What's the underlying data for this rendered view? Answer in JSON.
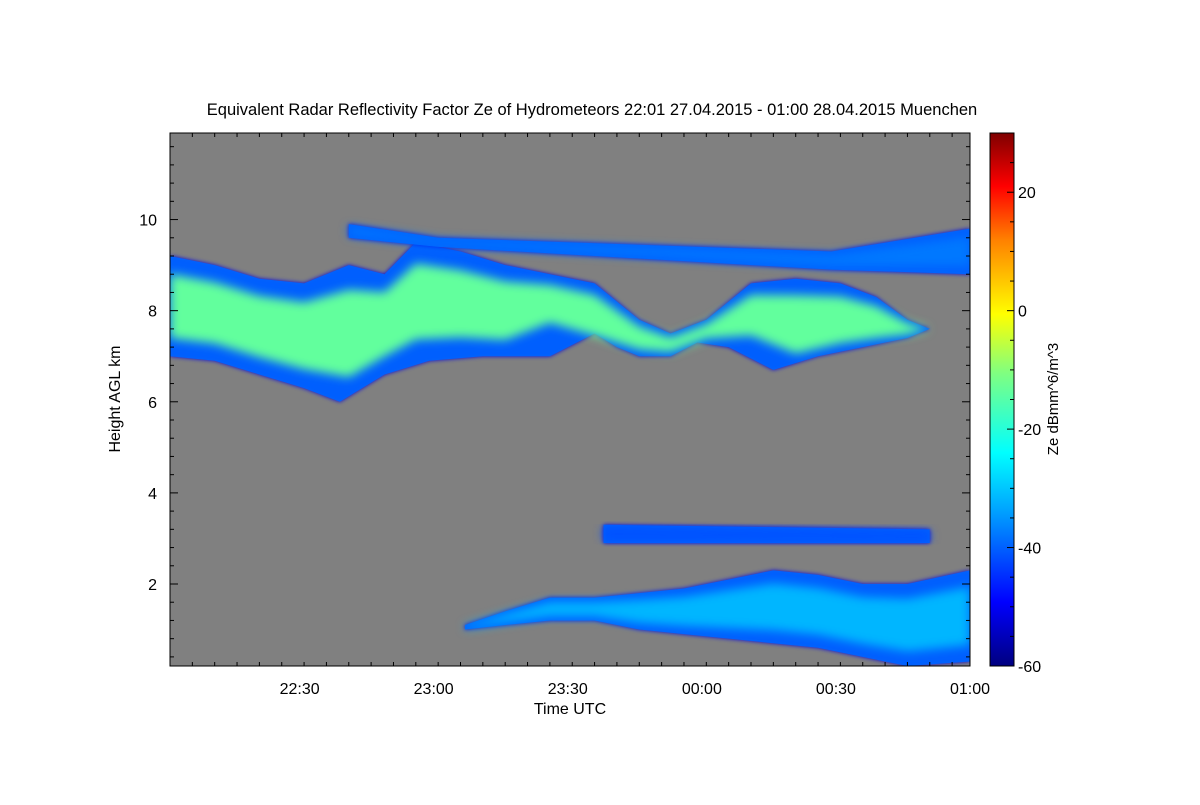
{
  "chart_data": {
    "type": "heatmap",
    "title": "Equivalent Radar Reflectivity Factor Ze of Hydrometeors   22:01 27.04.2015 - 01:00 28.04.2015 Muenchen",
    "xlabel": "Time UTC",
    "ylabel": "Height AGL km",
    "x_ticks": [
      "22:30",
      "23:00",
      "23:30",
      "00:00",
      "00:30",
      "01:00"
    ],
    "x_tick_minutes": [
      29,
      59,
      89,
      119,
      149,
      179
    ],
    "xlim_minutes": [
      0,
      179
    ],
    "y_ticks": [
      2,
      4,
      6,
      8,
      10
    ],
    "ylim": [
      0.2,
      11.9
    ],
    "background_color": "#808080",
    "colorbar": {
      "label": "Ze dBmm^6/m^3",
      "range": [
        -60,
        30
      ],
      "ticks": [
        -60,
        -40,
        -20,
        0,
        20
      ]
    },
    "layers": [
      {
        "name": "upper cloud layer",
        "top_km": [
          [
            0,
            9.2
          ],
          [
            10,
            9.0
          ],
          [
            20,
            8.7
          ],
          [
            30,
            8.6
          ],
          [
            40,
            9.0
          ],
          [
            48,
            8.8
          ],
          [
            55,
            9.5
          ],
          [
            65,
            9.3
          ],
          [
            75,
            9.0
          ],
          [
            85,
            8.8
          ],
          [
            95,
            8.6
          ],
          [
            105,
            7.8
          ],
          [
            112,
            7.5
          ],
          [
            120,
            7.8
          ],
          [
            130,
            8.6
          ],
          [
            140,
            8.7
          ],
          [
            150,
            8.6
          ],
          [
            158,
            8.3
          ],
          [
            165,
            7.8
          ],
          [
            170,
            7.6
          ]
        ],
        "base_km": [
          [
            0,
            7.0
          ],
          [
            10,
            6.9
          ],
          [
            20,
            6.6
          ],
          [
            30,
            6.3
          ],
          [
            38,
            6.0
          ],
          [
            48,
            6.6
          ],
          [
            58,
            6.9
          ],
          [
            70,
            7.0
          ],
          [
            85,
            7.0
          ],
          [
            95,
            7.5
          ],
          [
            100,
            7.2
          ],
          [
            105,
            7.0
          ],
          [
            112,
            7.0
          ],
          [
            118,
            7.3
          ],
          [
            125,
            7.2
          ],
          [
            135,
            6.7
          ],
          [
            145,
            7.0
          ],
          [
            155,
            7.2
          ],
          [
            165,
            7.4
          ],
          [
            170,
            7.6
          ]
        ],
        "core_dbz": -15
      },
      {
        "name": "thin cirrus patches",
        "top_km": [
          [
            40,
            9.9
          ],
          [
            60,
            9.6
          ],
          [
            148,
            9.3
          ],
          [
            179,
            9.8
          ]
        ],
        "base_km": [
          [
            40,
            9.6
          ],
          [
            60,
            9.4
          ],
          [
            148,
            8.9
          ],
          [
            179,
            8.8
          ]
        ],
        "core_dbz": -38
      },
      {
        "name": "lower cloud layer",
        "top_km": [
          [
            66,
            1.1
          ],
          [
            75,
            1.4
          ],
          [
            85,
            1.7
          ],
          [
            95,
            1.7
          ],
          [
            105,
            1.8
          ],
          [
            115,
            1.9
          ],
          [
            125,
            2.1
          ],
          [
            135,
            2.3
          ],
          [
            145,
            2.2
          ],
          [
            155,
            2.0
          ],
          [
            165,
            2.0
          ],
          [
            179,
            2.3
          ]
        ],
        "base_km": [
          [
            66,
            1.0
          ],
          [
            75,
            1.1
          ],
          [
            85,
            1.2
          ],
          [
            95,
            1.2
          ],
          [
            105,
            1.0
          ],
          [
            115,
            0.9
          ],
          [
            125,
            0.8
          ],
          [
            135,
            0.7
          ],
          [
            145,
            0.6
          ],
          [
            155,
            0.4
          ],
          [
            165,
            0.2
          ],
          [
            179,
            0.3
          ]
        ],
        "core_dbz": -32
      },
      {
        "name": "mid-level fragments",
        "top_km": [
          [
            97,
            3.3
          ],
          [
            170,
            3.2
          ]
        ],
        "base_km": [
          [
            97,
            2.9
          ],
          [
            170,
            2.9
          ]
        ],
        "core_dbz": -42
      }
    ]
  }
}
